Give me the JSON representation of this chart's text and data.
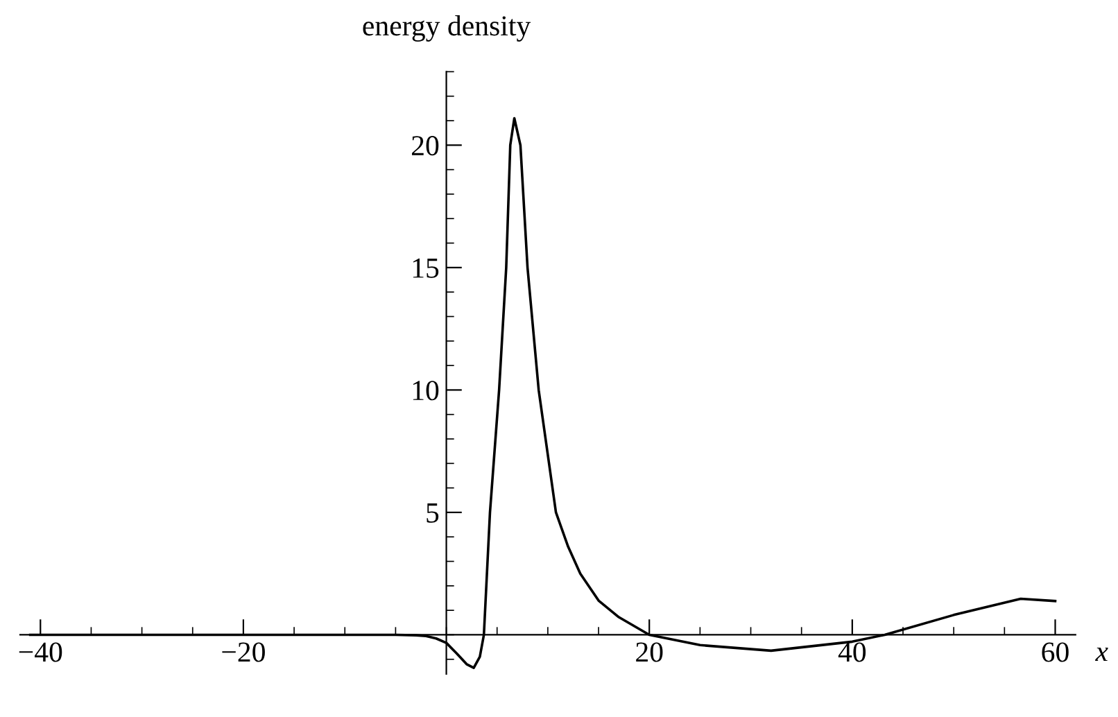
{
  "chart_data": {
    "type": "line",
    "xlabel": "x",
    "ylabel": "energy density",
    "x": [
      -41,
      -30,
      -20,
      -10,
      -5,
      -3,
      -2,
      -1,
      0,
      1,
      2,
      2.7,
      3.3,
      3.7,
      4.3,
      5.2,
      5.9,
      6.3,
      6.7,
      7.3,
      8,
      9.1,
      10.8,
      12,
      13.2,
      15,
      17,
      20,
      25,
      32,
      40,
      43.2,
      50,
      56.6,
      60
    ],
    "values": [
      0,
      0,
      0,
      0,
      0,
      -0.02,
      -0.05,
      -0.15,
      -0.33,
      -0.75,
      -1.2,
      -1.35,
      -0.9,
      0,
      5,
      10,
      15,
      20,
      21.1,
      20,
      15,
      10,
      5,
      3.6,
      2.5,
      1.4,
      0.72,
      0,
      -0.42,
      -0.65,
      -0.28,
      0,
      0.81,
      1.47,
      1.38
    ],
    "color": "#000000",
    "xlim": [
      -42,
      62
    ],
    "ylim": [
      -1.6,
      23
    ],
    "xticks": [
      {
        "value": -40,
        "label": "−40"
      },
      {
        "value": -20,
        "label": "−20"
      },
      20,
      40,
      60
    ],
    "yticks": [
      5,
      10,
      15,
      20
    ],
    "grid": false,
    "legend": false,
    "marker": "none",
    "line_style": "solid"
  }
}
